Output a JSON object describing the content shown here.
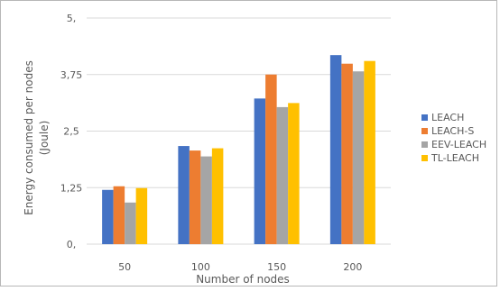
{
  "chart_data": {
    "type": "bar",
    "title": "",
    "xlabel": "Number of nodes",
    "ylabel_line1": "Energy consumed per nodes",
    "ylabel_line2": "(Joule)",
    "categories": [
      "50",
      "100",
      "150",
      "200"
    ],
    "y_ticks": [
      {
        "value": 0,
        "label": "0,"
      },
      {
        "value": 1.25,
        "label": "1,25"
      },
      {
        "value": 2.5,
        "label": "2,5"
      },
      {
        "value": 3.75,
        "label": "3,75"
      },
      {
        "value": 5,
        "label": "5,"
      }
    ],
    "ylim": [
      0,
      5
    ],
    "grid": true,
    "legend_position": "right",
    "series": [
      {
        "name": "LEACH",
        "color": "#4472C4",
        "values": [
          1.2,
          2.17,
          3.22,
          4.18
        ]
      },
      {
        "name": "LEACH-S",
        "color": "#ED7D31",
        "values": [
          1.28,
          2.07,
          3.75,
          3.99
        ]
      },
      {
        "name": "EEV-LEACH",
        "color": "#A5A5A5",
        "values": [
          0.92,
          1.94,
          3.03,
          3.82
        ]
      },
      {
        "name": "TL-LEACH",
        "color": "#FFC000",
        "values": [
          1.24,
          2.12,
          3.12,
          4.05
        ]
      }
    ]
  }
}
